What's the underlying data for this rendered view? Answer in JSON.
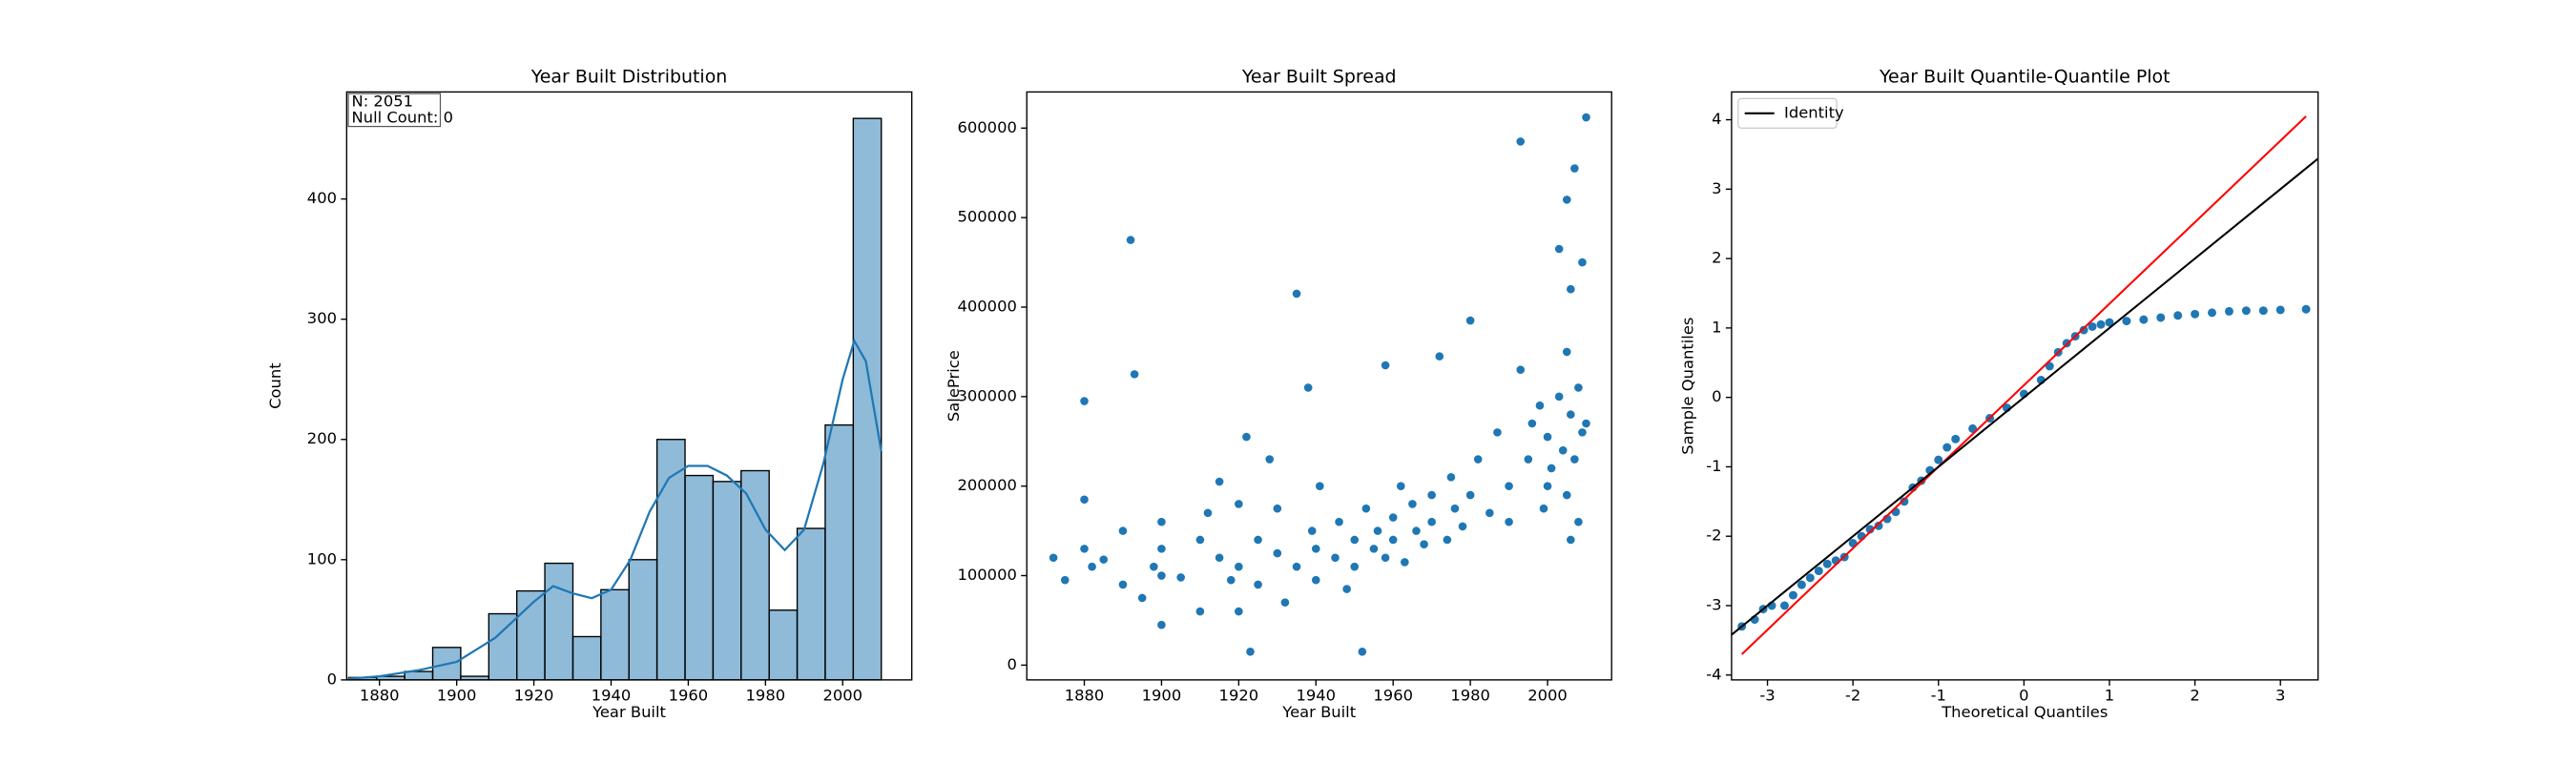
{
  "chart_data": [
    {
      "type": "histogram",
      "title": "Year Built Distribution",
      "xlabel": "Year Built",
      "ylabel": "Count",
      "color": "#1f77b4",
      "bins": [
        1872,
        1879.26,
        1886.53,
        1893.79,
        1901.05,
        1908.32,
        1915.58,
        1922.84,
        1930.11,
        1937.37,
        1944.63,
        1951.89,
        1959.16,
        1966.42,
        1973.68,
        1980.95,
        1988.21,
        1995.47,
        2002.74,
        2010
      ],
      "counts": [
        2,
        3,
        7,
        27,
        3,
        55,
        74,
        97,
        36,
        75,
        100,
        200,
        170,
        165,
        174,
        58,
        126,
        212,
        467
      ],
      "kde": {
        "x": [
          1872,
          1880,
          1890,
          1900,
          1910,
          1920,
          1925,
          1930,
          1935,
          1940,
          1945,
          1950,
          1955,
          1960,
          1965,
          1970,
          1975,
          1980,
          1985,
          1990,
          1995,
          2000,
          2003,
          2006,
          2010
        ],
        "values": [
          1,
          3,
          8,
          15,
          35,
          65,
          78,
          72,
          68,
          75,
          100,
          140,
          168,
          178,
          178,
          170,
          155,
          125,
          108,
          125,
          180,
          250,
          282,
          265,
          190
        ]
      },
      "annotation": [
        "N: 2051",
        "Null Count: 0"
      ],
      "xlim": [
        1871.5,
        2017.9
      ],
      "ylim": [
        0,
        489
      ],
      "xticks": [
        1880,
        1900,
        1920,
        1940,
        1960,
        1980,
        2000
      ],
      "yticks": [
        0,
        100,
        200,
        300,
        400
      ]
    },
    {
      "type": "scatter",
      "title": "Year Built Spread",
      "xlabel": "Year Built",
      "ylabel": "SalePrice",
      "color": "#1f77b4",
      "x": [
        1872,
        1875,
        1880,
        1880,
        1880,
        1882,
        1885,
        1890,
        1890,
        1892,
        1893,
        1895,
        1898,
        1900,
        1900,
        1900,
        1900,
        1905,
        1910,
        1910,
        1912,
        1915,
        1915,
        1918,
        1920,
        1920,
        1920,
        1922,
        1923,
        1925,
        1925,
        1928,
        1930,
        1930,
        1932,
        1935,
        1935,
        1938,
        1939,
        1940,
        1940,
        1941,
        1945,
        1946,
        1948,
        1950,
        1950,
        1952,
        1953,
        1955,
        1956,
        1958,
        1958,
        1960,
        1960,
        1962,
        1963,
        1965,
        1966,
        1968,
        1970,
        1970,
        1972,
        1974,
        1975,
        1976,
        1978,
        1980,
        1980,
        1982,
        1985,
        1987,
        1990,
        1990,
        1993,
        1993,
        1995,
        1996,
        1998,
        1999,
        2000,
        2000,
        2001,
        2003,
        2003,
        2004,
        2005,
        2005,
        2005,
        2006,
        2006,
        2007,
        2007,
        2008,
        2008,
        2009,
        2009,
        2010,
        2010,
        2006
      ],
      "values": [
        120000,
        95000,
        185000,
        130000,
        295000,
        110000,
        118000,
        150000,
        90000,
        475000,
        325000,
        75000,
        110000,
        160000,
        100000,
        45000,
        130000,
        98000,
        140000,
        60000,
        170000,
        120000,
        205000,
        95000,
        180000,
        110000,
        60000,
        255000,
        15000,
        140000,
        90000,
        230000,
        125000,
        175000,
        70000,
        415000,
        110000,
        310000,
        150000,
        130000,
        95000,
        200000,
        120000,
        160000,
        85000,
        140000,
        110000,
        15000,
        175000,
        130000,
        150000,
        335000,
        120000,
        165000,
        140000,
        200000,
        115000,
        180000,
        150000,
        135000,
        190000,
        160000,
        345000,
        140000,
        210000,
        175000,
        155000,
        385000,
        190000,
        230000,
        170000,
        260000,
        200000,
        160000,
        585000,
        330000,
        230000,
        270000,
        290000,
        175000,
        255000,
        200000,
        220000,
        300000,
        465000,
        240000,
        190000,
        350000,
        520000,
        280000,
        420000,
        555000,
        230000,
        160000,
        310000,
        260000,
        450000,
        612000,
        270000,
        140000
      ],
      "xlim": [
        1865.1,
        2016.6
      ],
      "ylim": [
        -16514,
        640367
      ],
      "xticks": [
        1880,
        1900,
        1920,
        1940,
        1960,
        1980,
        2000
      ],
      "yticks": [
        0,
        100000,
        200000,
        300000,
        400000,
        500000,
        600000
      ]
    },
    {
      "type": "qq",
      "title": "Year Built Quantile-Quantile Plot",
      "xlabel": "Theoretical Quantiles",
      "ylabel": "Sample Quantiles",
      "color": "#1f77b4",
      "x": [
        -3.3,
        -3.15,
        -3.05,
        -2.95,
        -2.8,
        -2.7,
        -2.6,
        -2.5,
        -2.4,
        -2.3,
        -2.2,
        -2.1,
        -2.0,
        -1.9,
        -1.8,
        -1.7,
        -1.6,
        -1.5,
        -1.4,
        -1.3,
        -1.2,
        -1.1,
        -1.0,
        -0.9,
        -0.8,
        -0.6,
        -0.4,
        -0.2,
        0,
        0.2,
        0.3,
        0.4,
        0.5,
        0.6,
        0.7,
        0.8,
        0.9,
        1.0,
        1.2,
        1.4,
        1.6,
        1.8,
        2.0,
        2.2,
        2.4,
        2.6,
        2.8,
        3.0,
        3.3
      ],
      "values": [
        -3.3,
        -3.2,
        -3.05,
        -3.0,
        -3.0,
        -2.85,
        -2.7,
        -2.6,
        -2.5,
        -2.4,
        -2.35,
        -2.3,
        -2.1,
        -2.0,
        -1.9,
        -1.85,
        -1.75,
        -1.65,
        -1.5,
        -1.3,
        -1.2,
        -1.05,
        -0.9,
        -0.72,
        -0.6,
        -0.45,
        -0.3,
        -0.15,
        0.05,
        0.25,
        0.45,
        0.65,
        0.78,
        0.88,
        0.97,
        1.02,
        1.05,
        1.08,
        1.1,
        1.12,
        1.15,
        1.18,
        1.2,
        1.22,
        1.24,
        1.25,
        1.25,
        1.26,
        1.27
      ],
      "reference_line": {
        "color": "red",
        "x": [
          -3.3,
          3.3
        ],
        "values": [
          -3.7,
          4.05
        ]
      },
      "series": [
        {
          "name": "Identity",
          "color": "black",
          "x": [
            -3.42,
            3.44
          ],
          "values": [
            -3.42,
            3.44
          ]
        }
      ],
      "legend": "upper left",
      "xlim": [
        -3.42,
        3.44
      ],
      "ylim": [
        -4.07,
        4.4
      ],
      "xticks": [
        -3,
        -2,
        -1,
        0,
        1,
        2,
        3
      ],
      "yticks": [
        -4,
        -3,
        -2,
        -1,
        0,
        1,
        2,
        3,
        4
      ]
    }
  ]
}
